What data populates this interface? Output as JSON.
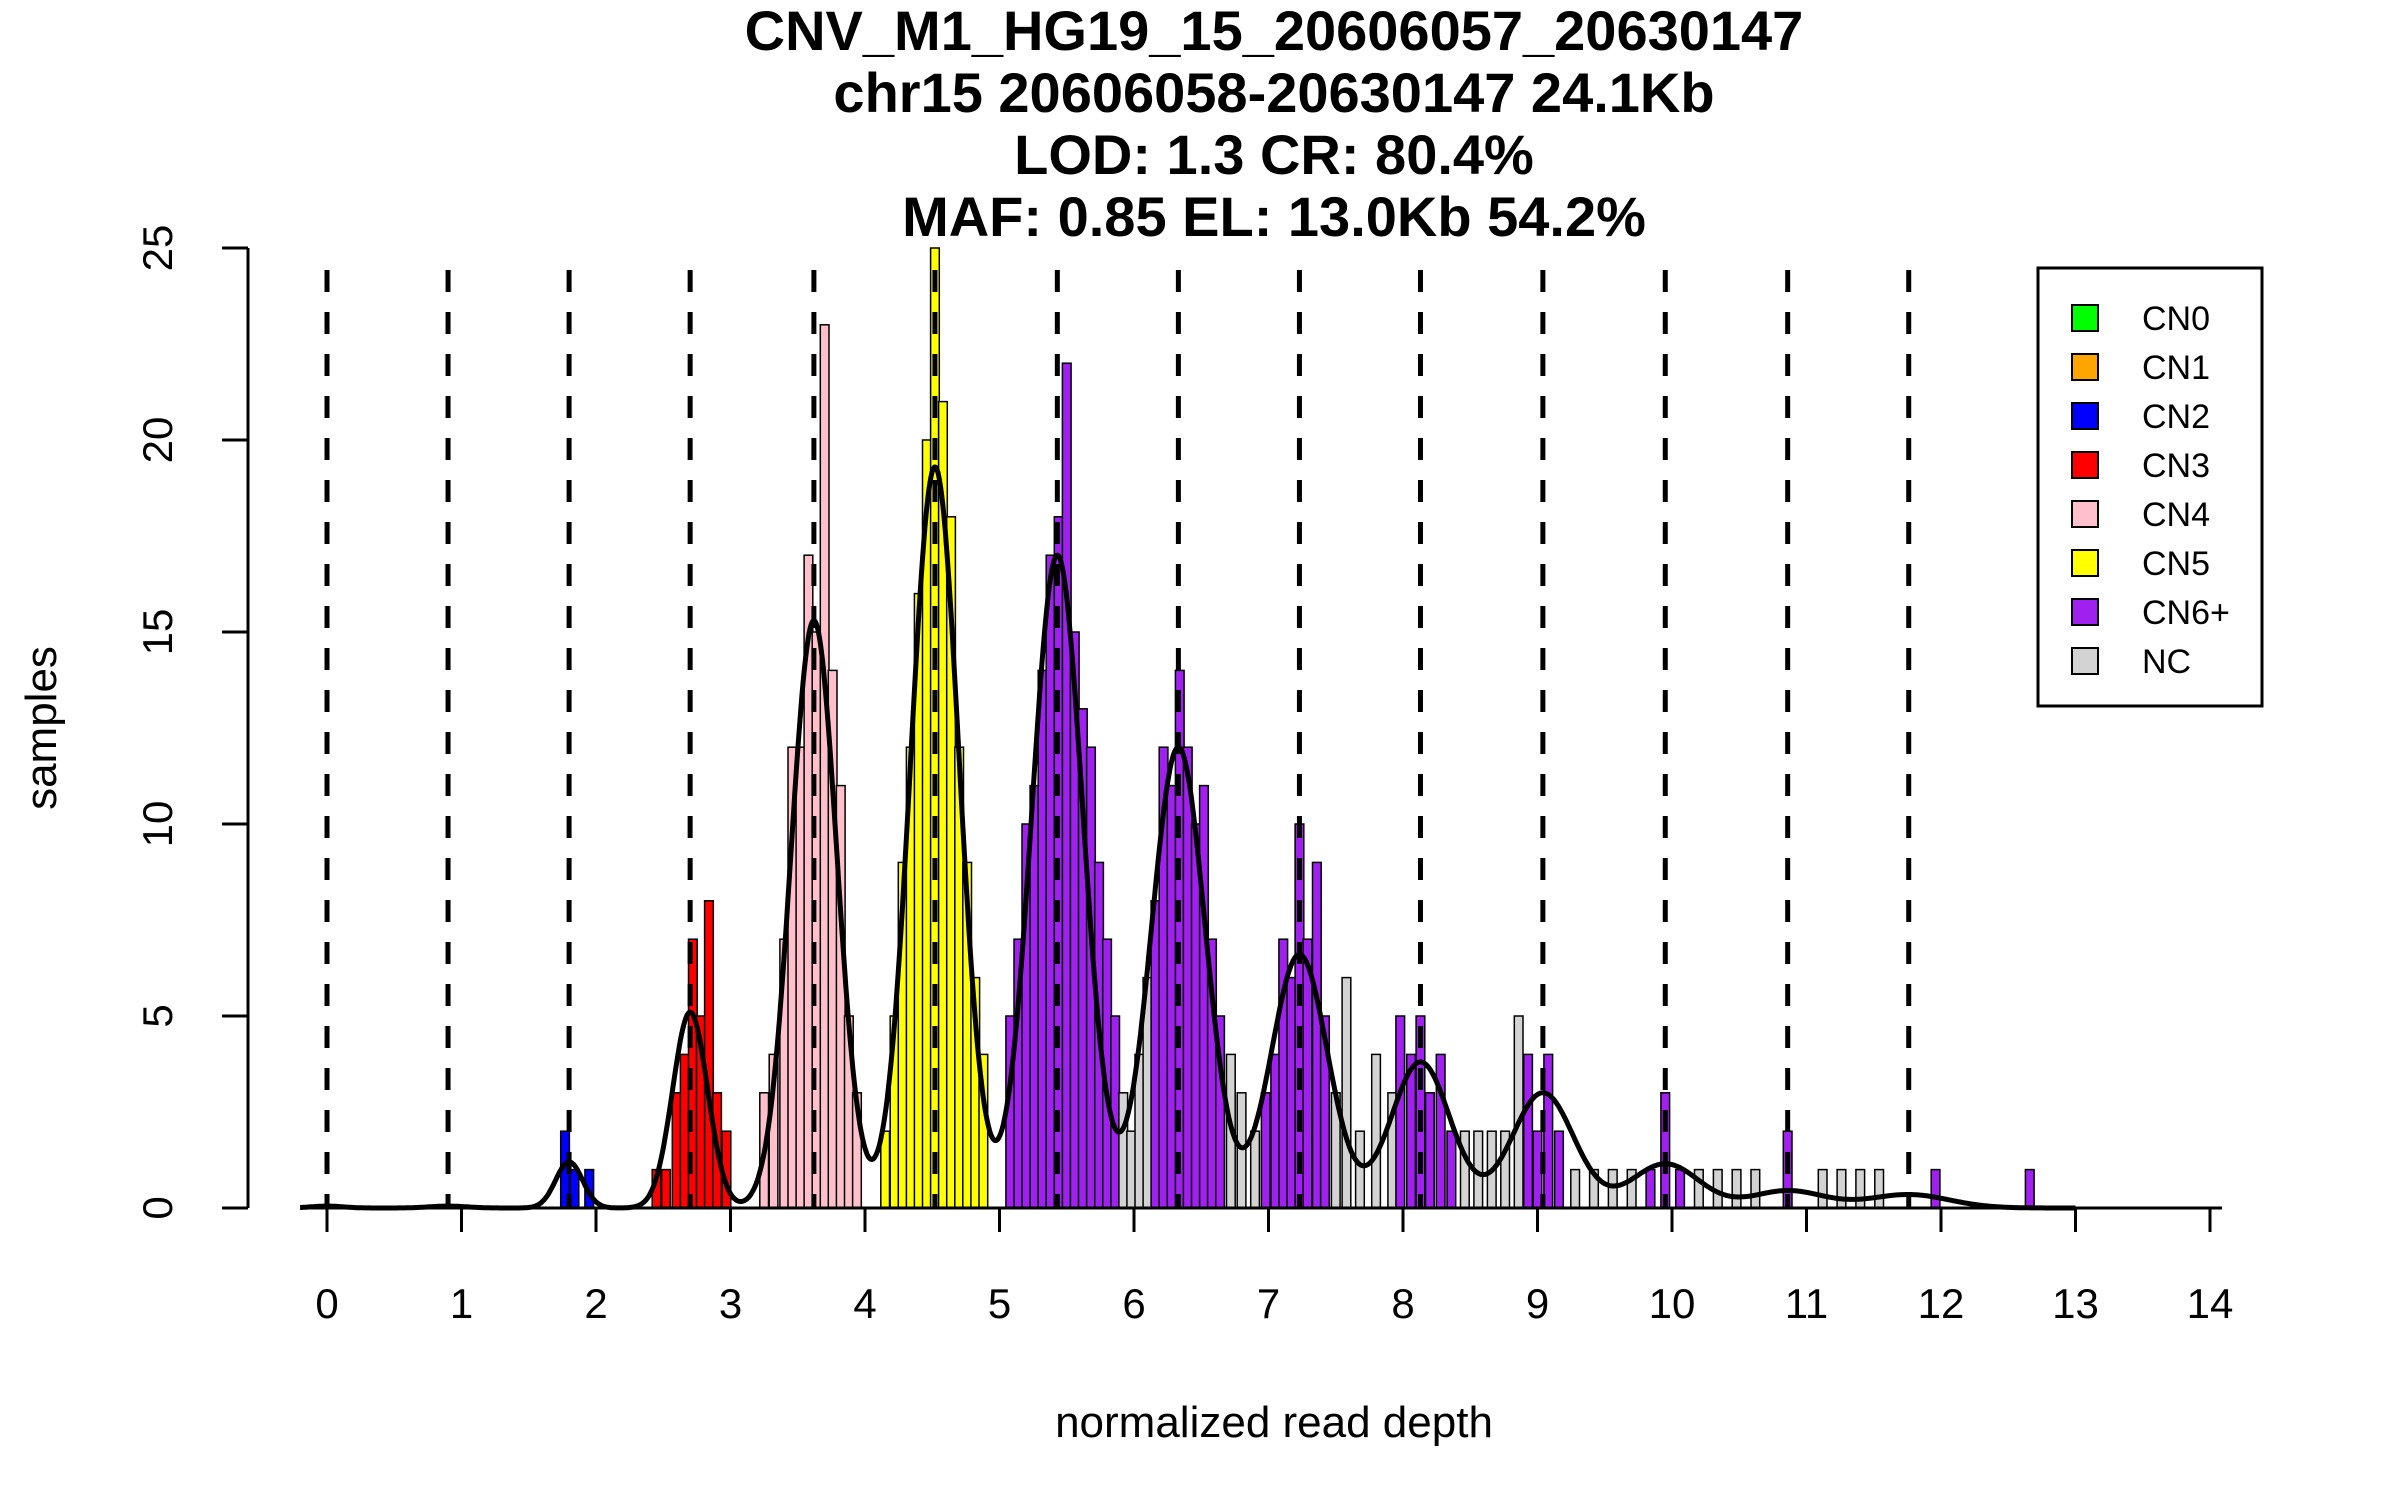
{
  "title_lines": [
    "CNV_M1_HG19_15_20606057_20630147",
    "chr15 20606058-20630147 24.1Kb",
    "LOD: 1.3 CR: 80.4%",
    "MAF: 0.85 EL: 13.0Kb 54.2%"
  ],
  "chart_data": {
    "type": "bar",
    "subtype": "histogram with fitted gaussian mixture",
    "xlabel": "normalized read depth",
    "ylabel": "samples",
    "xlim": [
      -0.2,
      14.1
    ],
    "ylim": [
      0,
      25
    ],
    "x_ticks": [
      0,
      1,
      2,
      3,
      4,
      5,
      6,
      7,
      8,
      9,
      10,
      11,
      12,
      13,
      14
    ],
    "y_ticks": [
      0,
      5,
      10,
      15,
      20,
      25
    ],
    "bin_width": 0.065,
    "grid": false,
    "legend_position": "top-right",
    "legend": [
      {
        "label": "CN0",
        "color": "#00ff00"
      },
      {
        "label": "CN1",
        "color": "#ffa500"
      },
      {
        "label": "CN2",
        "color": "#0000ff"
      },
      {
        "label": "CN3",
        "color": "#ff0000"
      },
      {
        "label": "CN4",
        "color": "#ffc0cb"
      },
      {
        "label": "CN5",
        "color": "#ffff00"
      },
      {
        "label": "CN6+",
        "color": "#a020f0"
      },
      {
        "label": "NC",
        "color": "#d3d3d3"
      }
    ],
    "dashed_lines_x": [
      0,
      0.9,
      1.8,
      2.7,
      3.62,
      4.52,
      5.43,
      6.33,
      7.23,
      8.13,
      9.04,
      9.95,
      10.86,
      11.76
    ],
    "peaks": [
      {
        "x": 0.0,
        "height": 0.05,
        "sd": 0.12,
        "color": "#00ff00"
      },
      {
        "x": 0.9,
        "height": 0.05,
        "sd": 0.14,
        "color": "#ffa500"
      },
      {
        "x": 1.8,
        "height": 1.2,
        "sd": 0.1,
        "color": "#0000ff"
      },
      {
        "x": 2.7,
        "height": 5.1,
        "sd": 0.13,
        "color": "#ff0000"
      },
      {
        "x": 3.62,
        "height": 15.3,
        "sd": 0.17,
        "color": "#ffc0cb"
      },
      {
        "x": 4.52,
        "height": 19.3,
        "sd": 0.18,
        "color": "#ffff00"
      },
      {
        "x": 5.43,
        "height": 17.0,
        "sd": 0.19,
        "color": "#a020f0"
      },
      {
        "x": 6.33,
        "height": 12.0,
        "sd": 0.2,
        "color": "#a020f0"
      },
      {
        "x": 7.23,
        "height": 6.6,
        "sd": 0.21,
        "color": "#a020f0"
      },
      {
        "x": 8.13,
        "height": 3.8,
        "sd": 0.22,
        "color": "#a020f0"
      },
      {
        "x": 9.04,
        "height": 3.0,
        "sd": 0.23,
        "color": "#a020f0"
      },
      {
        "x": 9.95,
        "height": 1.15,
        "sd": 0.25,
        "color": "#a020f0"
      },
      {
        "x": 10.86,
        "height": 0.45,
        "sd": 0.27,
        "color": "#a020f0"
      },
      {
        "x": 11.76,
        "height": 0.35,
        "sd": 0.3,
        "color": "#a020f0"
      }
    ],
    "histogram": [
      {
        "x": 1.77,
        "count": 2,
        "color": "#0000ff"
      },
      {
        "x": 1.84,
        "count": 1,
        "color": "#0000ff"
      },
      {
        "x": 1.95,
        "count": 1,
        "color": "#0000ff"
      },
      {
        "x": 2.45,
        "count": 1,
        "color": "#ff0000"
      },
      {
        "x": 2.52,
        "count": 1,
        "color": "#ff0000"
      },
      {
        "x": 2.6,
        "count": 3,
        "color": "#ff0000"
      },
      {
        "x": 2.66,
        "count": 4,
        "color": "#ff0000"
      },
      {
        "x": 2.72,
        "count": 7,
        "color": "#ff0000"
      },
      {
        "x": 2.78,
        "count": 5,
        "color": "#ff0000"
      },
      {
        "x": 2.84,
        "count": 8,
        "color": "#ff0000"
      },
      {
        "x": 2.9,
        "count": 3,
        "color": "#ff0000"
      },
      {
        "x": 2.97,
        "count": 2,
        "color": "#ff0000"
      },
      {
        "x": 3.25,
        "count": 3,
        "color": "#ffc0cb"
      },
      {
        "x": 3.32,
        "count": 4,
        "color": "#ffc0cb"
      },
      {
        "x": 3.4,
        "count": 7,
        "color": "#ffc0cb"
      },
      {
        "x": 3.46,
        "count": 12,
        "color": "#ffc0cb"
      },
      {
        "x": 3.52,
        "count": 12,
        "color": "#ffc0cb"
      },
      {
        "x": 3.58,
        "count": 17,
        "color": "#ffc0cb"
      },
      {
        "x": 3.64,
        "count": 15,
        "color": "#ffc0cb"
      },
      {
        "x": 3.7,
        "count": 23,
        "color": "#ffc0cb"
      },
      {
        "x": 3.76,
        "count": 14,
        "color": "#ffc0cb"
      },
      {
        "x": 3.82,
        "count": 11,
        "color": "#ffc0cb"
      },
      {
        "x": 3.88,
        "count": 5,
        "color": "#ffc0cb"
      },
      {
        "x": 3.94,
        "count": 3,
        "color": "#ffc0cb"
      },
      {
        "x": 4.15,
        "count": 2,
        "color": "#ffff00"
      },
      {
        "x": 4.22,
        "count": 5,
        "color": "#ffff00"
      },
      {
        "x": 4.28,
        "count": 9,
        "color": "#ffff00"
      },
      {
        "x": 4.34,
        "count": 12,
        "color": "#ffff00"
      },
      {
        "x": 4.4,
        "count": 16,
        "color": "#ffff00"
      },
      {
        "x": 4.46,
        "count": 20,
        "color": "#ffff00"
      },
      {
        "x": 4.52,
        "count": 25,
        "color": "#ffff00"
      },
      {
        "x": 4.58,
        "count": 21,
        "color": "#ffff00"
      },
      {
        "x": 4.64,
        "count": 18,
        "color": "#ffff00"
      },
      {
        "x": 4.7,
        "count": 12,
        "color": "#ffff00"
      },
      {
        "x": 4.76,
        "count": 9,
        "color": "#ffff00"
      },
      {
        "x": 4.82,
        "count": 6,
        "color": "#ffff00"
      },
      {
        "x": 4.88,
        "count": 4,
        "color": "#ffff00"
      },
      {
        "x": 5.08,
        "count": 5,
        "color": "#a020f0"
      },
      {
        "x": 5.14,
        "count": 7,
        "color": "#a020f0"
      },
      {
        "x": 5.2,
        "count": 10,
        "color": "#a020f0"
      },
      {
        "x": 5.26,
        "count": 11,
        "color": "#a020f0"
      },
      {
        "x": 5.32,
        "count": 14,
        "color": "#a020f0"
      },
      {
        "x": 5.38,
        "count": 17,
        "color": "#a020f0"
      },
      {
        "x": 5.44,
        "count": 18,
        "color": "#a020f0"
      },
      {
        "x": 5.5,
        "count": 22,
        "color": "#a020f0"
      },
      {
        "x": 5.56,
        "count": 15,
        "color": "#a020f0"
      },
      {
        "x": 5.62,
        "count": 13,
        "color": "#a020f0"
      },
      {
        "x": 5.68,
        "count": 12,
        "color": "#a020f0"
      },
      {
        "x": 5.74,
        "count": 9,
        "color": "#a020f0"
      },
      {
        "x": 5.8,
        "count": 7,
        "color": "#a020f0"
      },
      {
        "x": 5.86,
        "count": 5,
        "color": "#a020f0"
      },
      {
        "x": 5.92,
        "count": 3,
        "color": "#d3d3d3"
      },
      {
        "x": 5.98,
        "count": 2,
        "color": "#d3d3d3"
      },
      {
        "x": 6.04,
        "count": 4,
        "color": "#d3d3d3"
      },
      {
        "x": 6.1,
        "count": 6,
        "color": "#d3d3d3"
      },
      {
        "x": 6.16,
        "count": 8,
        "color": "#a020f0"
      },
      {
        "x": 6.22,
        "count": 12,
        "color": "#a020f0"
      },
      {
        "x": 6.28,
        "count": 11,
        "color": "#a020f0"
      },
      {
        "x": 6.34,
        "count": 14,
        "color": "#a020f0"
      },
      {
        "x": 6.4,
        "count": 12,
        "color": "#a020f0"
      },
      {
        "x": 6.46,
        "count": 10,
        "color": "#a020f0"
      },
      {
        "x": 6.52,
        "count": 11,
        "color": "#a020f0"
      },
      {
        "x": 6.58,
        "count": 7,
        "color": "#a020f0"
      },
      {
        "x": 6.64,
        "count": 5,
        "color": "#a020f0"
      },
      {
        "x": 6.72,
        "count": 4,
        "color": "#d3d3d3"
      },
      {
        "x": 6.8,
        "count": 3,
        "color": "#d3d3d3"
      },
      {
        "x": 6.9,
        "count": 2,
        "color": "#d3d3d3"
      },
      {
        "x": 6.98,
        "count": 3,
        "color": "#a020f0"
      },
      {
        "x": 7.05,
        "count": 4,
        "color": "#a020f0"
      },
      {
        "x": 7.11,
        "count": 7,
        "color": "#a020f0"
      },
      {
        "x": 7.17,
        "count": 6,
        "color": "#a020f0"
      },
      {
        "x": 7.23,
        "count": 10,
        "color": "#a020f0"
      },
      {
        "x": 7.29,
        "count": 7,
        "color": "#a020f0"
      },
      {
        "x": 7.36,
        "count": 9,
        "color": "#a020f0"
      },
      {
        "x": 7.42,
        "count": 5,
        "color": "#a020f0"
      },
      {
        "x": 7.5,
        "count": 3,
        "color": "#d3d3d3"
      },
      {
        "x": 7.58,
        "count": 6,
        "color": "#d3d3d3"
      },
      {
        "x": 7.68,
        "count": 2,
        "color": "#d3d3d3"
      },
      {
        "x": 7.8,
        "count": 4,
        "color": "#d3d3d3"
      },
      {
        "x": 7.92,
        "count": 3,
        "color": "#d3d3d3"
      },
      {
        "x": 7.98,
        "count": 5,
        "color": "#a020f0"
      },
      {
        "x": 8.06,
        "count": 4,
        "color": "#a020f0"
      },
      {
        "x": 8.13,
        "count": 5,
        "color": "#a020f0"
      },
      {
        "x": 8.2,
        "count": 3,
        "color": "#a020f0"
      },
      {
        "x": 8.28,
        "count": 4,
        "color": "#a020f0"
      },
      {
        "x": 8.36,
        "count": 2,
        "color": "#a020f0"
      },
      {
        "x": 8.46,
        "count": 2,
        "color": "#d3d3d3"
      },
      {
        "x": 8.56,
        "count": 2,
        "color": "#d3d3d3"
      },
      {
        "x": 8.66,
        "count": 2,
        "color": "#d3d3d3"
      },
      {
        "x": 8.76,
        "count": 2,
        "color": "#d3d3d3"
      },
      {
        "x": 8.86,
        "count": 5,
        "color": "#d3d3d3"
      },
      {
        "x": 8.93,
        "count": 4,
        "color": "#a020f0"
      },
      {
        "x": 9.0,
        "count": 2,
        "color": "#a020f0"
      },
      {
        "x": 9.08,
        "count": 4,
        "color": "#a020f0"
      },
      {
        "x": 9.16,
        "count": 2,
        "color": "#a020f0"
      },
      {
        "x": 9.28,
        "count": 1,
        "color": "#d3d3d3"
      },
      {
        "x": 9.42,
        "count": 1,
        "color": "#d3d3d3"
      },
      {
        "x": 9.56,
        "count": 1,
        "color": "#d3d3d3"
      },
      {
        "x": 9.7,
        "count": 1,
        "color": "#d3d3d3"
      },
      {
        "x": 9.84,
        "count": 1,
        "color": "#a020f0"
      },
      {
        "x": 9.95,
        "count": 3,
        "color": "#a020f0"
      },
      {
        "x": 10.06,
        "count": 1,
        "color": "#a020f0"
      },
      {
        "x": 10.2,
        "count": 1,
        "color": "#d3d3d3"
      },
      {
        "x": 10.34,
        "count": 1,
        "color": "#d3d3d3"
      },
      {
        "x": 10.48,
        "count": 1,
        "color": "#d3d3d3"
      },
      {
        "x": 10.62,
        "count": 1,
        "color": "#d3d3d3"
      },
      {
        "x": 10.86,
        "count": 2,
        "color": "#a020f0"
      },
      {
        "x": 11.12,
        "count": 1,
        "color": "#d3d3d3"
      },
      {
        "x": 11.26,
        "count": 1,
        "color": "#d3d3d3"
      },
      {
        "x": 11.4,
        "count": 1,
        "color": "#d3d3d3"
      },
      {
        "x": 11.54,
        "count": 1,
        "color": "#d3d3d3"
      },
      {
        "x": 11.96,
        "count": 1,
        "color": "#a020f0"
      },
      {
        "x": 12.66,
        "count": 1,
        "color": "#a020f0"
      }
    ]
  }
}
